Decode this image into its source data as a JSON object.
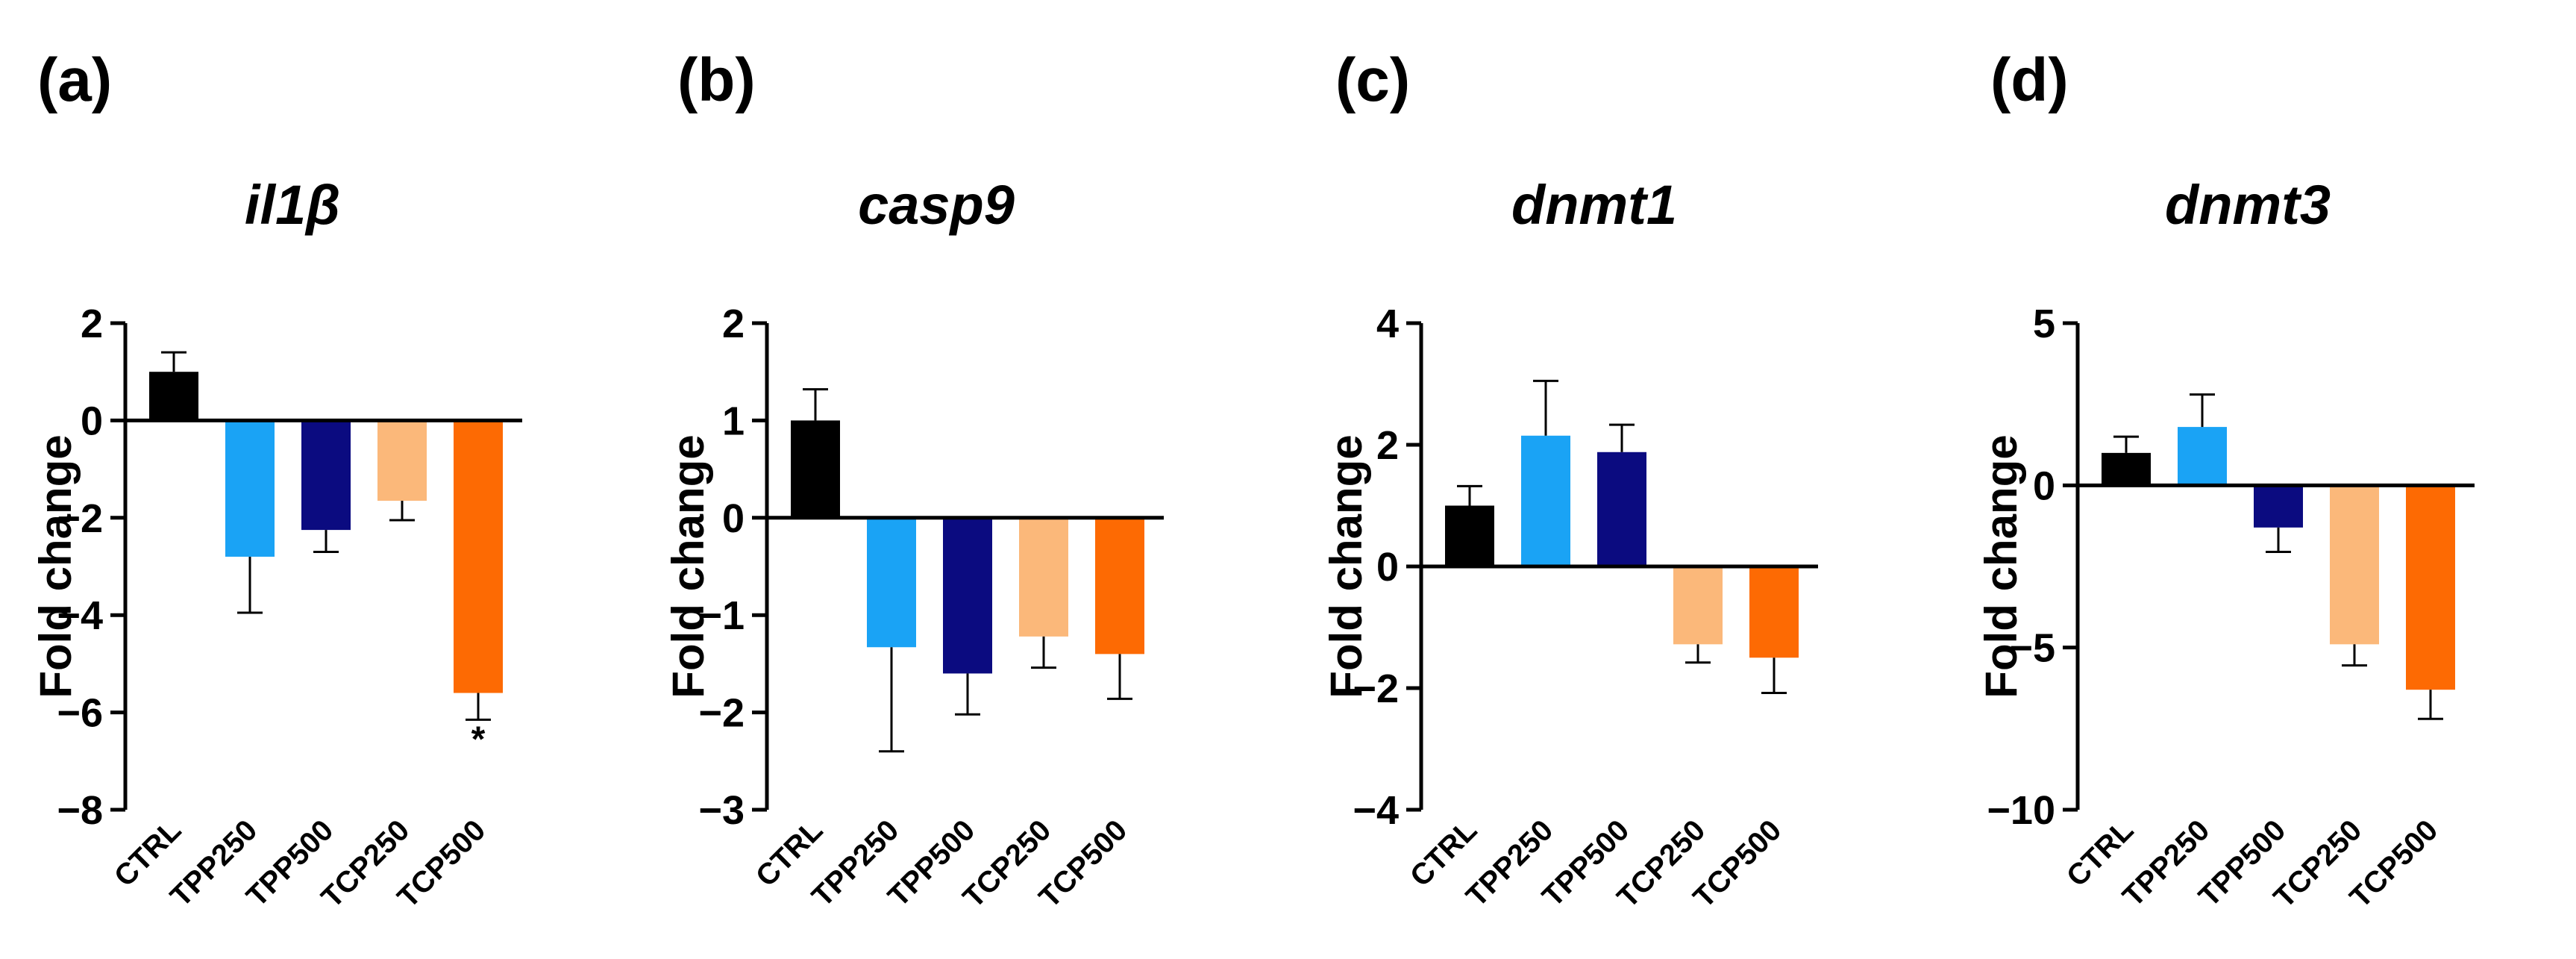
{
  "colors": {
    "CTRL": "#000000",
    "TPP250": "#1aa3f5",
    "TPP500": "#0b0b80",
    "TCP250": "#fbb87a",
    "TCP500": "#fd6a03"
  },
  "chart_data": [
    {
      "type": "bar",
      "panel": "(a)",
      "title": "il1β",
      "ylabel": "Fold change",
      "xlabel": "",
      "categories": [
        "CTRL",
        "TPP250",
        "TPP500",
        "TCP250",
        "TCP500"
      ],
      "values": [
        1.0,
        -2.8,
        -2.25,
        -1.65,
        -5.6
      ],
      "errors": [
        0.4,
        1.15,
        0.45,
        0.4,
        0.55
      ],
      "ylim": [
        -8,
        2
      ],
      "yticks": [
        2,
        0,
        -2,
        -4,
        -6,
        -8
      ],
      "ytick_labels": [
        "2",
        "0",
        "−2",
        "−4",
        "−6",
        "−8"
      ],
      "annotations": [
        {
          "category": "TCP500",
          "text": "*"
        }
      ]
    },
    {
      "type": "bar",
      "panel": "(b)",
      "title": "casp9",
      "ylabel": "Fold change",
      "xlabel": "",
      "categories": [
        "CTRL",
        "TPP250",
        "TPP500",
        "TCP250",
        "TCP500"
      ],
      "values": [
        1.0,
        -1.33,
        -1.6,
        -1.22,
        -1.4
      ],
      "errors": [
        0.32,
        1.07,
        0.42,
        0.32,
        0.46
      ],
      "ylim": [
        -3,
        2
      ],
      "yticks": [
        2,
        1,
        0,
        -1,
        -2,
        -3
      ],
      "ytick_labels": [
        "2",
        "1",
        "0",
        "−1",
        "−2",
        "−3"
      ],
      "annotations": []
    },
    {
      "type": "bar",
      "panel": "(c)",
      "title": "dnmt1",
      "ylabel": "Fold change",
      "xlabel": "",
      "categories": [
        "CTRL",
        "TPP250",
        "TPP500",
        "TCP250",
        "TCP500"
      ],
      "values": [
        1.0,
        2.15,
        1.88,
        -1.28,
        -1.5
      ],
      "errors": [
        0.32,
        0.9,
        0.45,
        0.3,
        0.58
      ],
      "ylim": [
        -4,
        4
      ],
      "yticks": [
        4,
        2,
        0,
        -2,
        -4
      ],
      "ytick_labels": [
        "4",
        "2",
        "0",
        "−2",
        "−4"
      ],
      "annotations": []
    },
    {
      "type": "bar",
      "panel": "(d)",
      "title": "dnmt3",
      "ylabel": "Fold change",
      "xlabel": "",
      "categories": [
        "CTRL",
        "TPP250",
        "TPP500",
        "TCP250",
        "TCP500"
      ],
      "values": [
        1.0,
        1.8,
        -1.3,
        -4.9,
        -6.3
      ],
      "errors": [
        0.5,
        1.0,
        0.75,
        0.65,
        0.9
      ],
      "ylim": [
        -10,
        5
      ],
      "yticks": [
        5,
        0,
        -5,
        -10
      ],
      "ytick_labels": [
        "5",
        "0",
        "−5",
        "−10"
      ],
      "annotations": []
    }
  ]
}
